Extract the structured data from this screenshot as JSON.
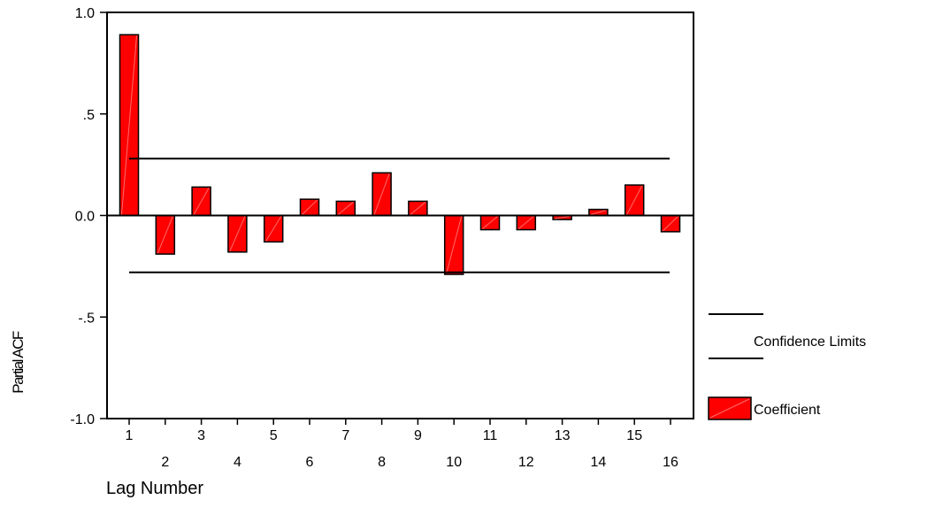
{
  "chart_data": {
    "type": "bar",
    "xlabel": "Lag Number",
    "ylabel": "Partial ACF",
    "ylim": [
      -1.0,
      1.0
    ],
    "yticks": [
      {
        "value": 1.0,
        "label": "1.0"
      },
      {
        "value": 0.5,
        "label": ".5"
      },
      {
        "value": 0.0,
        "label": "0.0"
      },
      {
        "value": -0.5,
        "label": "-.5"
      },
      {
        "value": -1.0,
        "label": "-1.0"
      }
    ],
    "categories": [
      "1",
      "2",
      "3",
      "4",
      "5",
      "6",
      "7",
      "8",
      "9",
      "10",
      "11",
      "12",
      "13",
      "14",
      "15",
      "16"
    ],
    "series": [
      {
        "name": "Coefficient",
        "color": "#ff0000",
        "values": [
          0.89,
          -0.19,
          0.14,
          -0.18,
          -0.13,
          0.08,
          0.07,
          0.21,
          0.07,
          -0.29,
          -0.07,
          -0.07,
          -0.02,
          0.03,
          0.15,
          -0.08
        ]
      }
    ],
    "confidence_limits": {
      "name": "Confidence Limits",
      "upper": 0.28,
      "lower": -0.28
    },
    "legend_position": "right",
    "grid": false
  }
}
